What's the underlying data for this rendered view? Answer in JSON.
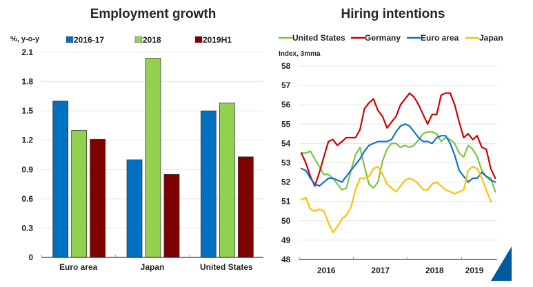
{
  "chart_data": [
    {
      "type": "bar",
      "title": "Employment growth",
      "ylabel": "%, y-o-y",
      "xlabel": "",
      "ylim": [
        0,
        2.1
      ],
      "yticks": [
        "0",
        "0.3",
        "0.6",
        "0.9",
        "1.2",
        "1.5",
        "1.8",
        "2.1"
      ],
      "ytick_values": [
        0,
        0.3,
        0.6,
        0.9,
        1.2,
        1.5,
        1.8,
        2.1
      ],
      "grid": true,
      "legend_position": "top",
      "categories": [
        "Euro area",
        "Japan",
        "United States"
      ],
      "series": [
        {
          "name": "2016-17",
          "color": "#0070C0",
          "values": [
            1.6,
            1.0,
            1.5
          ]
        },
        {
          "name": "2018",
          "color": "#92D050",
          "values": [
            1.3,
            2.04,
            1.58
          ]
        },
        {
          "name": "2019H1",
          "color": "#800000",
          "values": [
            1.21,
            0.85,
            1.03
          ]
        }
      ]
    },
    {
      "type": "line",
      "title": "Hiring intentions",
      "ylabel": "Index, 3mma",
      "xlabel": "",
      "ylim": [
        48,
        58
      ],
      "yticks": [
        "48",
        "49",
        "50",
        "51",
        "52",
        "53",
        "54",
        "55",
        "56",
        "57",
        "58"
      ],
      "ytick_values": [
        48,
        49,
        50,
        51,
        52,
        53,
        54,
        55,
        56,
        57,
        58
      ],
      "xticks": [
        "2016",
        "2017",
        "2018",
        "2019"
      ],
      "x_start": "2016-01",
      "x_frequency": "monthly",
      "grid": true,
      "legend_position": "top",
      "series": [
        {
          "name": "United States",
          "color": "#7DC242",
          "values": [
            53.5,
            53.5,
            53.6,
            53.2,
            52.8,
            52.4,
            52.4,
            52.2,
            51.9,
            51.6,
            51.7,
            52.6,
            53.4,
            53.8,
            52.8,
            51.9,
            51.7,
            52.0,
            53.1,
            53.7,
            54.0,
            54.0,
            53.8,
            53.9,
            53.8,
            53.9,
            54.2,
            54.5,
            54.6,
            54.6,
            54.5,
            54.1,
            54.3,
            54.2,
            54.0,
            53.5,
            53.3,
            53.9,
            53.7,
            53.3,
            52.6,
            52.3,
            52.2,
            51.5
          ]
        },
        {
          "name": "Germany",
          "color": "#CC0000",
          "values": [
            53.5,
            53.0,
            52.3,
            51.8,
            52.5,
            53.3,
            54.1,
            54.2,
            53.9,
            54.1,
            54.3,
            54.3,
            54.3,
            54.7,
            55.8,
            56.1,
            56.3,
            55.7,
            55.4,
            54.8,
            55.1,
            55.4,
            56.0,
            56.3,
            56.6,
            56.4,
            56.0,
            55.5,
            55.0,
            55.5,
            55.5,
            56.5,
            56.6,
            56.6,
            56.0,
            55.1,
            54.3,
            54.5,
            54.2,
            54.4,
            53.8,
            53.7,
            52.7,
            52.2
          ]
        },
        {
          "name": "Euro area",
          "color": "#0B74C9",
          "values": [
            52.7,
            52.6,
            52.2,
            51.9,
            51.8,
            52.0,
            52.2,
            52.2,
            52.1,
            52.0,
            52.3,
            52.6,
            52.9,
            53.2,
            53.6,
            53.9,
            54.0,
            54.1,
            54.1,
            54.1,
            54.2,
            54.6,
            54.9,
            55.0,
            54.9,
            54.6,
            54.3,
            54.1,
            54.1,
            54.0,
            54.3,
            54.4,
            54.4,
            54.0,
            53.4,
            52.6,
            52.3,
            52.0,
            52.2,
            52.2,
            52.5,
            52.3,
            52.1,
            52.0
          ]
        },
        {
          "name": "Japan",
          "color": "#FFC000",
          "values": [
            51.1,
            51.2,
            50.6,
            50.5,
            50.6,
            50.5,
            49.9,
            49.4,
            49.7,
            50.1,
            50.3,
            50.7,
            51.6,
            52.2,
            52.2,
            52.3,
            52.7,
            52.8,
            52.4,
            51.9,
            51.7,
            51.5,
            51.8,
            52.1,
            52.2,
            52.1,
            51.9,
            51.6,
            51.6,
            51.9,
            52.0,
            51.8,
            51.6,
            51.5,
            51.4,
            51.5,
            51.6,
            52.6,
            52.8,
            52.7,
            52.2,
            51.6,
            51.0
          ]
        }
      ]
    }
  ],
  "decor": {
    "corner_triangle_color": "#005A9C"
  }
}
